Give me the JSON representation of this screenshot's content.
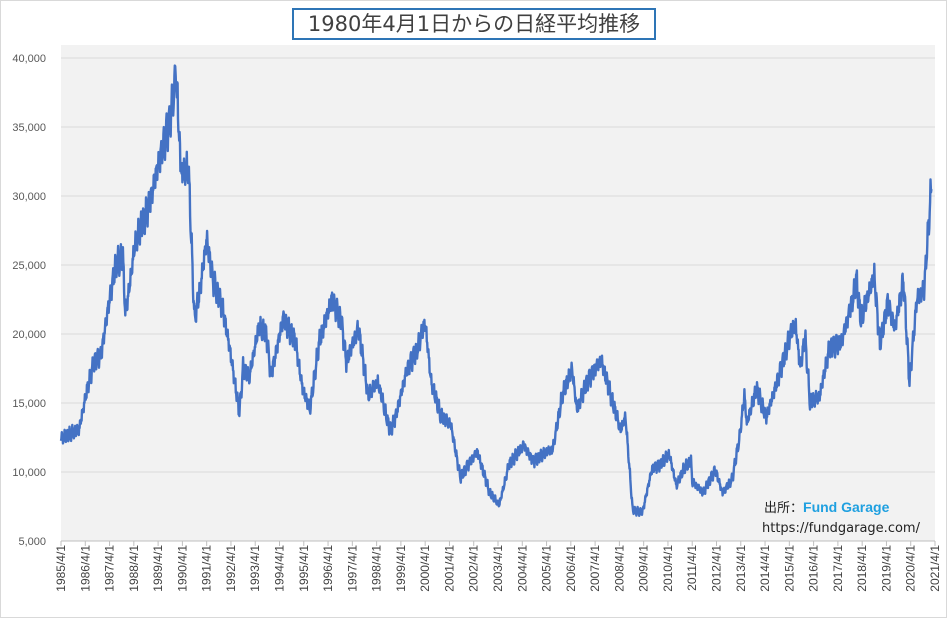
{
  "chart_data": {
    "type": "line",
    "title": "1980年4月1日からの日経平均推移",
    "xlabel": "",
    "ylabel": "",
    "ylim": [
      5000,
      40000
    ],
    "yticks": [
      5000,
      10000,
      15000,
      20000,
      25000,
      30000,
      35000,
      40000
    ],
    "ytick_labels": [
      "5,000",
      "10,000",
      "15,000",
      "20,000",
      "25,000",
      "30,000",
      "35,000",
      "40,000"
    ],
    "xlim": [
      1985.25,
      2021.25
    ],
    "xtick_labels": [
      "1985/4/1",
      "1986/4/1",
      "1987/4/1",
      "1988/4/1",
      "1989/4/1",
      "1990/4/1",
      "1991/4/1",
      "1992/4/1",
      "1993/4/1",
      "1994/4/1",
      "1995/4/1",
      "1996/4/1",
      "1997/4/1",
      "1998/4/1",
      "1999/4/1",
      "2000/4/1",
      "2001/4/1",
      "2002/4/1",
      "2003/4/1",
      "2004/4/1",
      "2005/4/1",
      "2006/4/1",
      "2007/4/1",
      "2008/4/1",
      "2009/4/1",
      "2010/4/1",
      "2011/4/1",
      "2012/4/1",
      "2013/4/1",
      "2014/4/1",
      "2015/4/1",
      "2016/4/1",
      "2017/4/1",
      "2018/4/1",
      "2019/4/1",
      "2020/4/1",
      "2021/4/1"
    ],
    "grid": true,
    "series": [
      {
        "name": "日経平均",
        "color": "#4472c4",
        "x": [
          1985.25,
          1985.6,
          1986.0,
          1986.3,
          1986.6,
          1986.9,
          1987.2,
          1987.5,
          1987.8,
          1987.9,
          1988.0,
          1988.3,
          1988.6,
          1988.9,
          1989.2,
          1989.5,
          1989.75,
          1989.99,
          1990.2,
          1990.5,
          1990.75,
          1991.0,
          1991.25,
          1991.5,
          1991.9,
          1992.2,
          1992.6,
          1992.75,
          1993.0,
          1993.4,
          1993.7,
          1993.9,
          1994.4,
          1994.9,
          1995.2,
          1995.5,
          1995.9,
          1996.4,
          1996.8,
          1997.0,
          1997.5,
          1997.9,
          1998.3,
          1998.8,
          1999.0,
          1999.5,
          1999.9,
          2000.25,
          2000.5,
          2000.9,
          2001.3,
          2001.7,
          2002.0,
          2002.4,
          2002.9,
          2003.3,
          2003.7,
          2004.3,
          2004.7,
          2005.3,
          2005.5,
          2005.9,
          2006.3,
          2006.5,
          2006.9,
          2007.5,
          2007.9,
          2008.3,
          2008.5,
          2008.8,
          2009.2,
          2009.6,
          2009.9,
          2010.3,
          2010.6,
          2010.9,
          2011.2,
          2011.25,
          2011.7,
          2012.2,
          2012.5,
          2012.9,
          2013.2,
          2013.4,
          2013.5,
          2013.9,
          2014.3,
          2014.9,
          2015.3,
          2015.5,
          2015.7,
          2015.9,
          2016.1,
          2016.5,
          2016.9,
          2017.4,
          2017.9,
          2018.0,
          2018.2,
          2018.75,
          2018.98,
          2019.3,
          2019.6,
          2019.95,
          2020.2,
          2020.5,
          2020.8,
          2020.95,
          2021.1
        ],
        "values": [
          12400,
          12700,
          13100,
          15800,
          18000,
          18500,
          22000,
          25000,
          25500,
          21500,
          22500,
          26500,
          28000,
          29500,
          32000,
          34000,
          35500,
          38900,
          31500,
          32000,
          21000,
          23500,
          26900,
          24000,
          22000,
          19000,
          14300,
          17500,
          16800,
          20500,
          20000,
          17000,
          21200,
          19500,
          16000,
          14500,
          19500,
          22500,
          21000,
          18000,
          20500,
          15500,
          16500,
          13000,
          13800,
          17500,
          18800,
          20800,
          16500,
          14000,
          13500,
          9600,
          10500,
          11500,
          8500,
          7600,
          10500,
          12000,
          10800,
          11500,
          11600,
          15500,
          17500,
          14500,
          16500,
          18200,
          15500,
          13000,
          14000,
          7200,
          7100,
          10300,
          10500,
          11300,
          9000,
          10200,
          10800,
          9300,
          8500,
          10200,
          8500,
          9500,
          12500,
          15600,
          13500,
          16000,
          14000,
          17500,
          20000,
          20800,
          17500,
          19800,
          15000,
          15500,
          19000,
          19500,
          22800,
          24100,
          21000,
          24200,
          19200,
          22300,
          20500,
          24000,
          16500,
          22500,
          23200,
          27000,
          30500
        ]
      }
    ]
  },
  "source": {
    "label": "出所：",
    "brand": "Fund Garage",
    "url": "https://fundgarage.com/"
  }
}
